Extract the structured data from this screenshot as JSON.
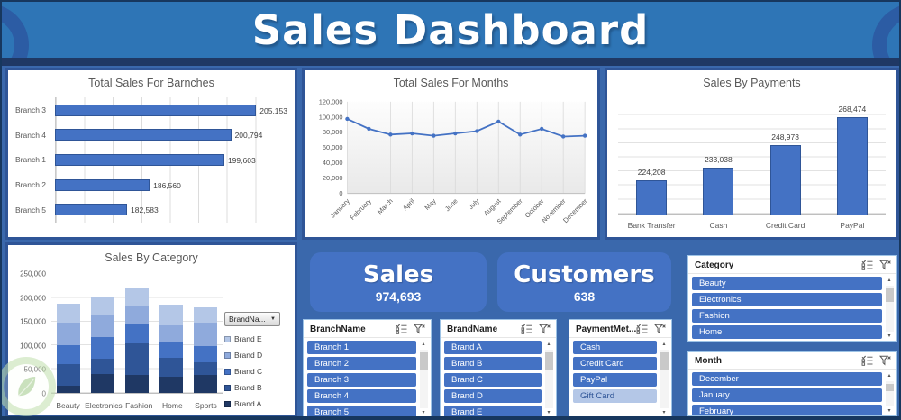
{
  "title": "Sales Dashboard",
  "colors": {
    "background": "#3A68AC",
    "title_band": "#2E75B6",
    "navy": "#1F3864",
    "panel_border": "#2F5597",
    "accent": "#4472C4",
    "unselected_item": "#B4C7E7"
  },
  "icons": {
    "slicer_multiselect": "multi-select-icon",
    "slicer_clear_filter": "clear-filter-icon",
    "legend_caret": "chevron-down-icon",
    "scroll_up": "▴",
    "scroll_down": "▾",
    "watermark": "leaf-logo"
  },
  "cards": [
    {
      "label": "Sales",
      "value": "974,693"
    },
    {
      "label": "Customers",
      "value": "638"
    }
  ],
  "slicers": [
    {
      "title": "BranchName",
      "items": [
        {
          "label": "Branch 1",
          "selected": true
        },
        {
          "label": "Branch 2",
          "selected": true
        },
        {
          "label": "Branch 3",
          "selected": true
        },
        {
          "label": "Branch 4",
          "selected": true
        },
        {
          "label": "Branch 5",
          "selected": true
        }
      ]
    },
    {
      "title": "BrandName",
      "items": [
        {
          "label": "Brand A",
          "selected": true
        },
        {
          "label": "Brand B",
          "selected": true
        },
        {
          "label": "Brand C",
          "selected": true
        },
        {
          "label": "Brand D",
          "selected": true
        },
        {
          "label": "Brand E",
          "selected": true
        }
      ]
    },
    {
      "title": "PaymentMet...",
      "items": [
        {
          "label": "Cash",
          "selected": true
        },
        {
          "label": "Credit Card",
          "selected": true
        },
        {
          "label": "PayPal",
          "selected": true
        },
        {
          "label": "Gift Card",
          "selected": false
        }
      ]
    },
    {
      "title": "Category",
      "items": [
        {
          "label": "Beauty",
          "selected": true
        },
        {
          "label": "Electronics",
          "selected": true
        },
        {
          "label": "Fashion",
          "selected": true
        },
        {
          "label": "Home",
          "selected": true
        }
      ]
    },
    {
      "title": "Month",
      "items": [
        {
          "label": "December",
          "selected": true
        },
        {
          "label": "January",
          "selected": true
        },
        {
          "label": "February",
          "selected": true
        }
      ]
    }
  ],
  "chart_data": [
    {
      "id": "branches",
      "type": "bar",
      "orientation": "horizontal",
      "title": "Total Sales For Barnches",
      "categories": [
        "Branch 3",
        "Branch 4",
        "Branch 1",
        "Branch 2",
        "Branch 5"
      ],
      "values": [
        205153,
        200794,
        199603,
        186560,
        182583
      ],
      "labels": [
        "205,153",
        "200,794",
        "199,603",
        "186,560",
        "182,583"
      ],
      "xlim": [
        170000,
        210000
      ],
      "gridline_step": 5000,
      "grid": "vertical",
      "bar_color": "#4472C4",
      "bar_border": "#2F5597"
    },
    {
      "id": "months",
      "type": "line",
      "title": "Total Sales For Months",
      "x": [
        "January",
        "February",
        "March",
        "April",
        "May",
        "June",
        "July",
        "August",
        "September",
        "October",
        "November",
        "December"
      ],
      "values": [
        97500,
        84500,
        77000,
        78500,
        75500,
        78500,
        81500,
        94000,
        77000,
        84500,
        74500,
        75500
      ],
      "ylim": [
        0,
        120000
      ],
      "yticks": [
        "0",
        "20,000",
        "40,000",
        "60,000",
        "80,000",
        "100,000",
        "120,000"
      ],
      "grid": "vertical",
      "line_color": "#4472C4"
    },
    {
      "id": "payments",
      "type": "bar",
      "orientation": "vertical",
      "title": "Sales By Payments",
      "categories": [
        "Bank Transfer",
        "Cash",
        "Credit Card",
        "PayPal"
      ],
      "values": [
        224208,
        233038,
        248973,
        268474
      ],
      "labels": [
        "224,208",
        "233,038",
        "248,973",
        "268,474"
      ],
      "ylim": [
        200000,
        280000
      ],
      "gridline_step": 10000,
      "grid": "horizontal",
      "bar_color": "#4472C4",
      "bar_border": "#2F5597"
    },
    {
      "id": "category",
      "type": "stacked-bar",
      "title": "Sales By Category",
      "categories": [
        "Beauty",
        "Electronics",
        "Fashion",
        "Home",
        "Sports"
      ],
      "series": [
        {
          "name": "Brand A",
          "color": "#1F3864",
          "values": [
            15000,
            39000,
            38000,
            35000,
            37000
          ]
        },
        {
          "name": "Brand B",
          "color": "#2F5597",
          "values": [
            46000,
            33000,
            66000,
            39000,
            27000
          ]
        },
        {
          "name": "Brand C",
          "color": "#4472C4",
          "values": [
            39000,
            45000,
            41000,
            32000,
            35000
          ]
        },
        {
          "name": "Brand D",
          "color": "#8FAADC",
          "values": [
            47000,
            48000,
            37000,
            37000,
            49000
          ]
        },
        {
          "name": "Brand E",
          "color": "#B4C7E7",
          "values": [
            40000,
            35000,
            39000,
            42000,
            32000
          ]
        }
      ],
      "ylim": [
        0,
        250000
      ],
      "yticks": [
        "0",
        "50,000",
        "100,000",
        "150,000",
        "200,000",
        "250,000"
      ],
      "grid": "horizontal",
      "legend_dropdown_label": "BrandNa...",
      "legend_order": [
        "Brand E",
        "Brand D",
        "Brand C",
        "Brand B",
        "Brand A"
      ],
      "legend_position": "right"
    }
  ]
}
